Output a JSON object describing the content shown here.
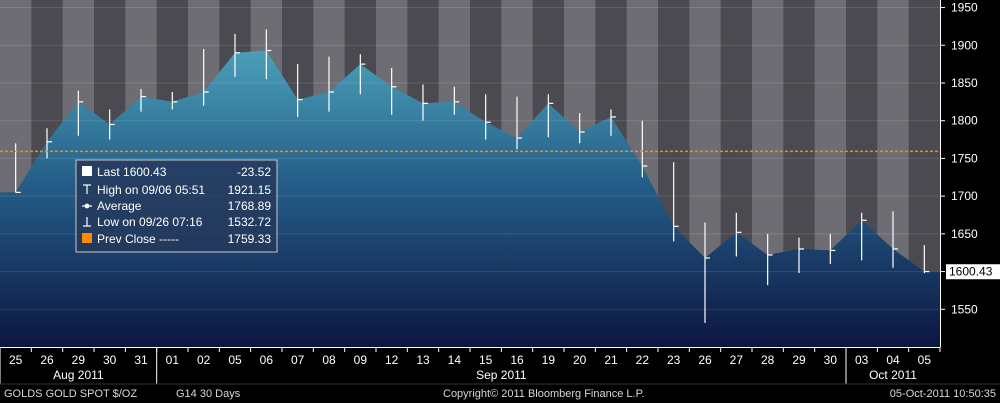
{
  "chart_data": {
    "type": "bar",
    "subtype": "hi-lo-close",
    "y_axis_position": "right",
    "ylim": [
      1500,
      1960
    ],
    "yticks": [
      1550,
      1600,
      1650,
      1700,
      1750,
      1800,
      1850,
      1900,
      1950
    ],
    "last_price_marker": "1600.43",
    "colors": {
      "area_top": "#4a9fb8",
      "area_bottom": "#0c1640",
      "bar": "#ffffff",
      "prev_close_line": "#ff8c00",
      "background_light": "#6d6d73",
      "background_dark": "#4a4a50"
    },
    "categories": [
      "25",
      "26",
      "29",
      "30",
      "31",
      "01",
      "02",
      "05",
      "06",
      "07",
      "08",
      "09",
      "12",
      "13",
      "14",
      "15",
      "16",
      "19",
      "20",
      "21",
      "22",
      "23",
      "26",
      "27",
      "28",
      "29",
      "30",
      "03",
      "04",
      "05"
    ],
    "month_labels": [
      {
        "label": "Aug 2011",
        "start": 0,
        "end": 4
      },
      {
        "label": "Sep 2011",
        "start": 5,
        "end": 26
      },
      {
        "label": "Oct 2011",
        "start": 27,
        "end": 29
      }
    ],
    "series": [
      {
        "close": [
          1705,
          1772,
          1825,
          1795,
          1832,
          1825,
          1838,
          1890,
          1893,
          1828,
          1838,
          1875,
          1845,
          1823,
          1825,
          1798,
          1777,
          1823,
          1785,
          1805,
          1740,
          1660,
          1618,
          1652,
          1622,
          1630,
          1628,
          1668,
          1630,
          1600
        ],
        "high": [
          1770,
          1790,
          1840,
          1815,
          1842,
          1838,
          1895,
          1915,
          1921,
          1875,
          1885,
          1888,
          1870,
          1848,
          1845,
          1835,
          1832,
          1835,
          1810,
          1815,
          1800,
          1745,
          1665,
          1678,
          1650,
          1645,
          1650,
          1678,
          1680,
          1635
        ],
        "low": [
          1705,
          1750,
          1780,
          1775,
          1812,
          1815,
          1820,
          1858,
          1855,
          1805,
          1812,
          1835,
          1808,
          1800,
          1808,
          1775,
          1762,
          1778,
          1770,
          1780,
          1725,
          1640,
          1532,
          1620,
          1582,
          1598,
          1610,
          1615,
          1605,
          1598
        ]
      }
    ],
    "prev_close": 1759.33,
    "legend": {
      "last_label": "Last 1600.43",
      "last_change": "-23.52",
      "high_label": "High on 09/06 05:51",
      "high_value": "1921.15",
      "avg_label": "Average",
      "avg_value": "1768.89",
      "low_label": "Low on 09/26 07:16",
      "low_value": "1532.72",
      "prev_label": "Prev Close -----",
      "prev_value": "1759.33"
    }
  },
  "footer": {
    "ticker": "GOLDS  GOLD SPOT $/OZ",
    "chart_info": "G14  30 Days",
    "copyright": "Copyright© 2011 Bloomberg Finance L.P.",
    "timestamp": "05-Oct-2011 10:50:35"
  }
}
